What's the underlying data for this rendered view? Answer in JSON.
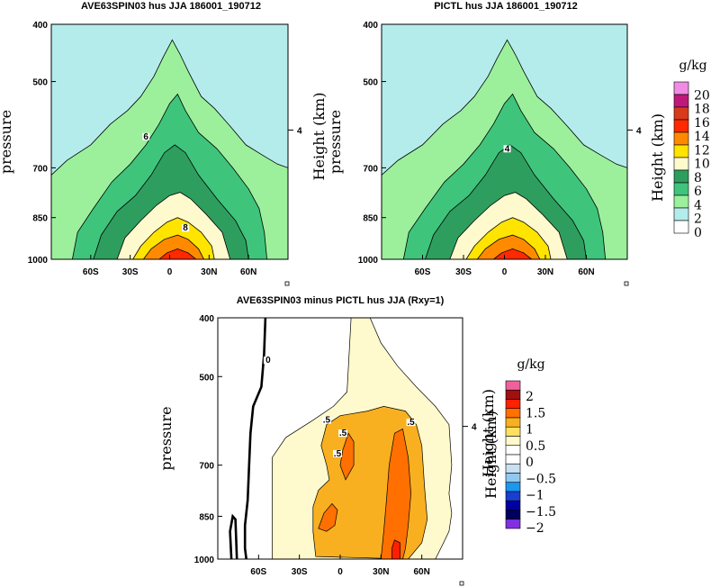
{
  "chart_data": [
    {
      "type": "contour",
      "title": "AVE63SPIN03 hus JJA 186001_190712",
      "ylabel": "pressure",
      "ylabel_right": "Height (km)",
      "xticks": [
        "60S",
        "30S",
        "0",
        "30N",
        "60N"
      ],
      "xtick_values": [
        -60,
        -30,
        0,
        30,
        60
      ],
      "yticks": [
        "400",
        "500",
        "700",
        "850",
        "1000"
      ],
      "ytick_values": [
        400,
        500,
        700,
        850,
        1000
      ],
      "right_ticks": [
        "4"
      ],
      "xlim": [
        -90,
        90
      ],
      "ylim": [
        1000,
        400
      ],
      "contour_labels": [
        "6",
        "8"
      ],
      "contour_levels": [
        2,
        4,
        6,
        8,
        10,
        12,
        14,
        16
      ],
      "peak": {
        "lat": 10,
        "pressure": 1000,
        "value": 16
      }
    },
    {
      "type": "contour",
      "title": "PICTL hus JJA 186001_190712",
      "ylabel": "pressure",
      "ylabel_right": "Height (km)",
      "xticks": [
        "60S",
        "30S",
        "0",
        "30N",
        "60N"
      ],
      "xtick_values": [
        -60,
        -30,
        0,
        30,
        60
      ],
      "yticks": [
        "400",
        "500",
        "700",
        "850",
        "1000"
      ],
      "ytick_values": [
        400,
        500,
        700,
        850,
        1000
      ],
      "right_ticks": [
        "4"
      ],
      "xlim": [
        -90,
        90
      ],
      "ylim": [
        1000,
        400
      ],
      "contour_labels": [
        "4"
      ],
      "contour_levels": [
        2,
        4,
        6,
        8,
        10,
        12,
        14,
        16
      ],
      "peak": {
        "lat": 10,
        "pressure": 1000,
        "value": 16
      }
    },
    {
      "type": "contour",
      "title": "AVE63SPIN03 minus PICTL hus JJA (Rxy=1)",
      "ylabel": "pressure",
      "ylabel_right": "Height (km)",
      "xticks": [
        "60S",
        "30S",
        "0",
        "30N",
        "60N"
      ],
      "xtick_values": [
        -60,
        -30,
        0,
        30,
        60
      ],
      "yticks": [
        "400",
        "500",
        "700",
        "850",
        "1000"
      ],
      "ytick_values": [
        400,
        500,
        700,
        850,
        1000
      ],
      "right_ticks": [
        "4"
      ],
      "xlim": [
        -90,
        90
      ],
      "ylim": [
        1000,
        400
      ],
      "contour_labels": [
        "0",
        ".5",
        ".5",
        ".5",
        ".5"
      ],
      "contour_levels": [
        -2,
        -1.5,
        -1,
        -0.5,
        0,
        0.5,
        1,
        1.5,
        2
      ],
      "max": {
        "lat": 42,
        "pressure": 990,
        "value": 2
      }
    }
  ],
  "colorbars": [
    {
      "units": "g/kg",
      "label": "Height (km)",
      "labels": [
        "20",
        "18",
        "16",
        "14",
        "12",
        "10",
        "8",
        "6",
        "4",
        "2",
        "0"
      ],
      "colors": [
        "#f08ce4",
        "#c0187a",
        "#d83b1c",
        "#ff2a00",
        "#ff8a00",
        "#ffe400",
        "#fffacd",
        "#2e9e5e",
        "#3fc47c",
        "#9cf09c",
        "#b4ecec",
        "#ffffff"
      ]
    },
    {
      "units": "g/kg",
      "label": "Height (km)",
      "labels": [
        "2",
        "1.5",
        "1",
        "0.5",
        "0",
        "−0.5",
        "−1",
        "−1.5",
        "−2"
      ],
      "colors": [
        "#f0609c",
        "#a01010",
        "#ff2000",
        "#ff7000",
        "#f8b020",
        "#ffe060",
        "#fffacd",
        "#ffffff",
        "#ffffff",
        "#c8e0f0",
        "#90c8f0",
        "#1898f0",
        "#1840d0",
        "#0000a0",
        "#000060",
        "#8030e0"
      ]
    }
  ]
}
